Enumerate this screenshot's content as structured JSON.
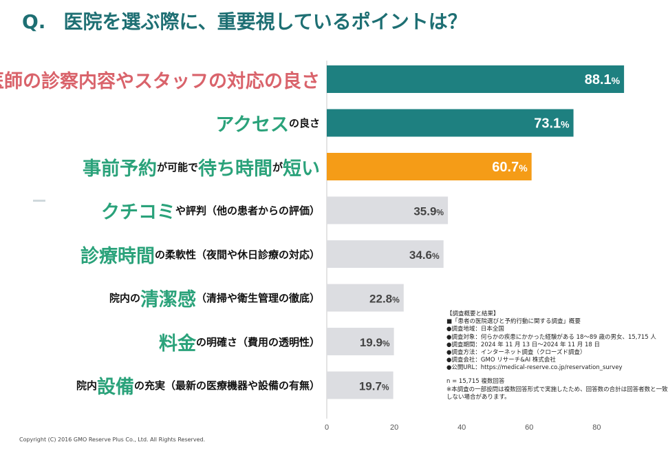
{
  "title": {
    "prefix": "Q.",
    "text": "医院を選ぶ際に、重要視しているポイントは？"
  },
  "labels": [
    [
      {
        "t": "医師の診察内容やスタッフの対応の良さ",
        "s": "big",
        "c": "red"
      }
    ],
    [
      {
        "t": "アクセス",
        "s": "big",
        "c": "green"
      },
      {
        "t": "の良さ",
        "s": "sm",
        "c": ""
      }
    ],
    [
      {
        "t": "事前予約",
        "s": "big",
        "c": "green"
      },
      {
        "t": "が可能で",
        "s": "sm",
        "c": ""
      },
      {
        "t": "待ち時間",
        "s": "big",
        "c": "green"
      },
      {
        "t": "が",
        "s": "sm",
        "c": ""
      },
      {
        "t": "短い",
        "s": "big",
        "c": "green"
      }
    ],
    [
      {
        "t": "クチコミ",
        "s": "big",
        "c": "green"
      },
      {
        "t": "や評判（他の患者からの評価）",
        "s": "sm",
        "c": ""
      }
    ],
    [
      {
        "t": "診療時間",
        "s": "big",
        "c": "green"
      },
      {
        "t": "の柔軟性（夜間や休日診療の対応）",
        "s": "sm",
        "c": ""
      }
    ],
    [
      {
        "t": "院内の",
        "s": "sm",
        "c": ""
      },
      {
        "t": "清潔感",
        "s": "big",
        "c": "green"
      },
      {
        "t": "（清掃や衛生管理の徹底）",
        "s": "sm",
        "c": ""
      }
    ],
    [
      {
        "t": "料金",
        "s": "big",
        "c": "green"
      },
      {
        "t": "の明確さ（費用の透明性）",
        "s": "sm",
        "c": ""
      }
    ],
    [
      {
        "t": "院内",
        "s": "sm",
        "c": ""
      },
      {
        "t": "設備",
        "s": "big",
        "c": "green"
      },
      {
        "t": "の充実（最新の医療機器や設備の有無）",
        "s": "sm",
        "c": ""
      }
    ]
  ],
  "chart_data": {
    "type": "bar",
    "orientation": "horizontal",
    "categories": [
      "医師の診察内容やスタッフの対応の良さ",
      "アクセスの良さ",
      "事前予約が可能で待ち時間が短い",
      "クチコミや評判（他の患者からの評価）",
      "診療時間の柔軟性（夜間や休日診療の対応）",
      "院内の清潔感（清掃や衛生管理の徹底）",
      "料金の明確さ（費用の透明性）",
      "院内設備の充実（最新の医療機器や設備の有無）"
    ],
    "values": [
      88.1,
      73.1,
      60.7,
      35.9,
      34.6,
      22.8,
      19.9,
      19.7
    ],
    "value_suffix": "%",
    "bar_colors": [
      "#1e8080",
      "#1e8080",
      "#f59c17",
      "#dcdde1",
      "#dcdde1",
      "#dcdde1",
      "#dcdde1",
      "#dcdde1"
    ],
    "label_colors": [
      "#ffffff",
      "#ffffff",
      "#ffffff",
      "#444444",
      "#444444",
      "#444444",
      "#444444",
      "#444444"
    ],
    "xlim": [
      0,
      90
    ],
    "xticks": [
      0,
      20,
      40,
      60,
      80
    ],
    "grid": false
  },
  "notes": {
    "summary": [
      "【調査概要と結果】",
      "■「患者の医院選びと予約行動に関する調査」概要",
      "●調査地域：日本全国",
      "●調査対象：何らかの疾患にかかった経験がある 18〜89 歳の男女、15,715 人",
      "●調査期間：2024 年 11 月 13 日〜2024 年 11 月 18 日",
      "●調査方法：インターネット調査（クローズド調査）",
      "●調査会社：GMO リサーチ&AI 株式会社",
      "●公開URL：https://medical-reserve.co.jp/reservation_survey"
    ],
    "n": "n = 15,715 複数回答",
    "caveat": "※本調査の一部設問は複数回答形式で実施したため、回答数の合計は回答者数と一致しない場合があります。"
  },
  "footer": "Copyright (C) 2016 GMO Reserve Plus Co., Ltd. All Rights Reserved."
}
